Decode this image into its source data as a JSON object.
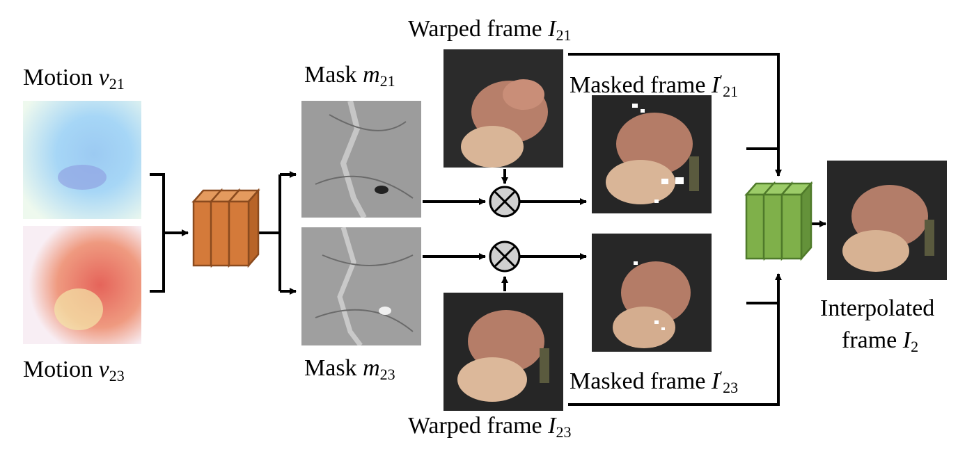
{
  "labels": {
    "motion_v21": {
      "prefix": "Motion ",
      "var": "v",
      "sub": "21"
    },
    "motion_v23": {
      "prefix": "Motion ",
      "var": "v",
      "sub": "23"
    },
    "mask_m21": {
      "prefix": "Mask ",
      "var": "m",
      "sub": "21"
    },
    "mask_m23": {
      "prefix": "Mask ",
      "var": "m",
      "sub": "23"
    },
    "warped_i21": {
      "prefix": "Warped frame ",
      "var": "I",
      "sub": "21"
    },
    "warped_i23": {
      "prefix": "Warped frame ",
      "var": "I",
      "sub": "23"
    },
    "masked_i21": {
      "prefix": "Masked frame ",
      "var": "I",
      "sup": "′",
      "sub": "21"
    },
    "masked_i23": {
      "prefix": "Masked frame ",
      "var": "I",
      "sup": "′",
      "sub": "23"
    },
    "interp_line1": "Interpolated",
    "interp_line2": {
      "prefix": "frame ",
      "var": "I",
      "sub": "2"
    }
  },
  "colors": {
    "mask_net": "#d47a3a",
    "fusion_net": "#7fb04a",
    "motion_v21_tint": "#8fc8f0",
    "motion_v23_tint": "#e8705a"
  },
  "icons": {
    "multiply": "circled-times-icon"
  }
}
